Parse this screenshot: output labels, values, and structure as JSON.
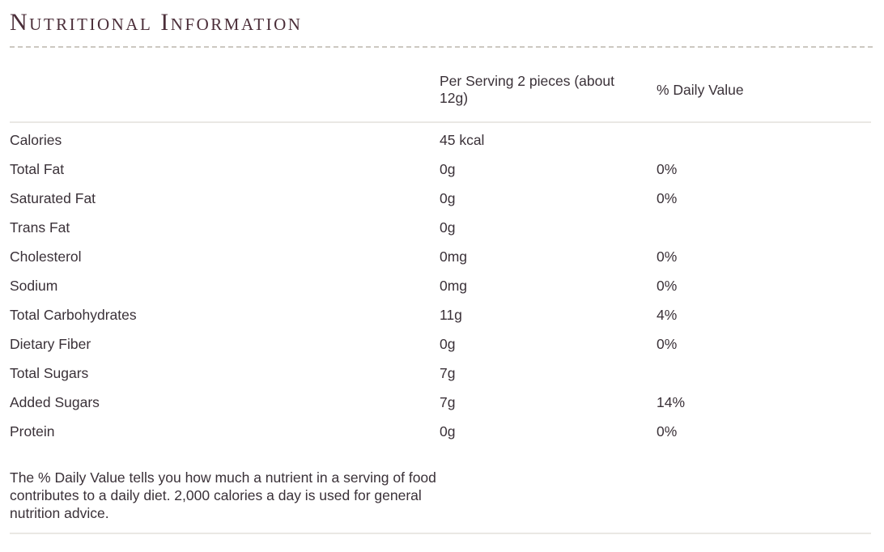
{
  "page": {
    "title": "Nutritional Information",
    "colors": {
      "title_text": "#4b2e39",
      "body_text": "#3a3138",
      "dashed_divider": "#ccc8c1",
      "solid_divider": "#eae8e4",
      "background": "#ffffff"
    }
  },
  "table": {
    "header": {
      "serving_column": "Per Serving 2 pieces (about 12g)",
      "daily_value_column": "% Daily Value"
    },
    "rows": [
      {
        "label": "Calories",
        "value": "45 kcal",
        "daily_value": ""
      },
      {
        "label": "Total Fat",
        "value": "0g",
        "daily_value": "0%"
      },
      {
        "label": "Saturated Fat",
        "value": "0g",
        "daily_value": "0%"
      },
      {
        "label": "Trans Fat",
        "value": "0g",
        "daily_value": ""
      },
      {
        "label": "Cholesterol",
        "value": "0mg",
        "daily_value": "0%"
      },
      {
        "label": "Sodium",
        "value": "0mg",
        "daily_value": "0%"
      },
      {
        "label": "Total Carbohydrates",
        "value": "11g",
        "daily_value": "4%"
      },
      {
        "label": "Dietary Fiber",
        "value": "0g",
        "daily_value": "0%"
      },
      {
        "label": "Total Sugars",
        "value": "7g",
        "daily_value": ""
      },
      {
        "label": "Added Sugars",
        "value": "7g",
        "daily_value": "14%"
      },
      {
        "label": "Protein",
        "value": "0g",
        "daily_value": "0%"
      }
    ]
  },
  "footer": {
    "note": "The % Daily Value tells you how much a nutrient in a serving of food contributes to a daily diet. 2,000 calories a day is used for general nutrition advice."
  }
}
